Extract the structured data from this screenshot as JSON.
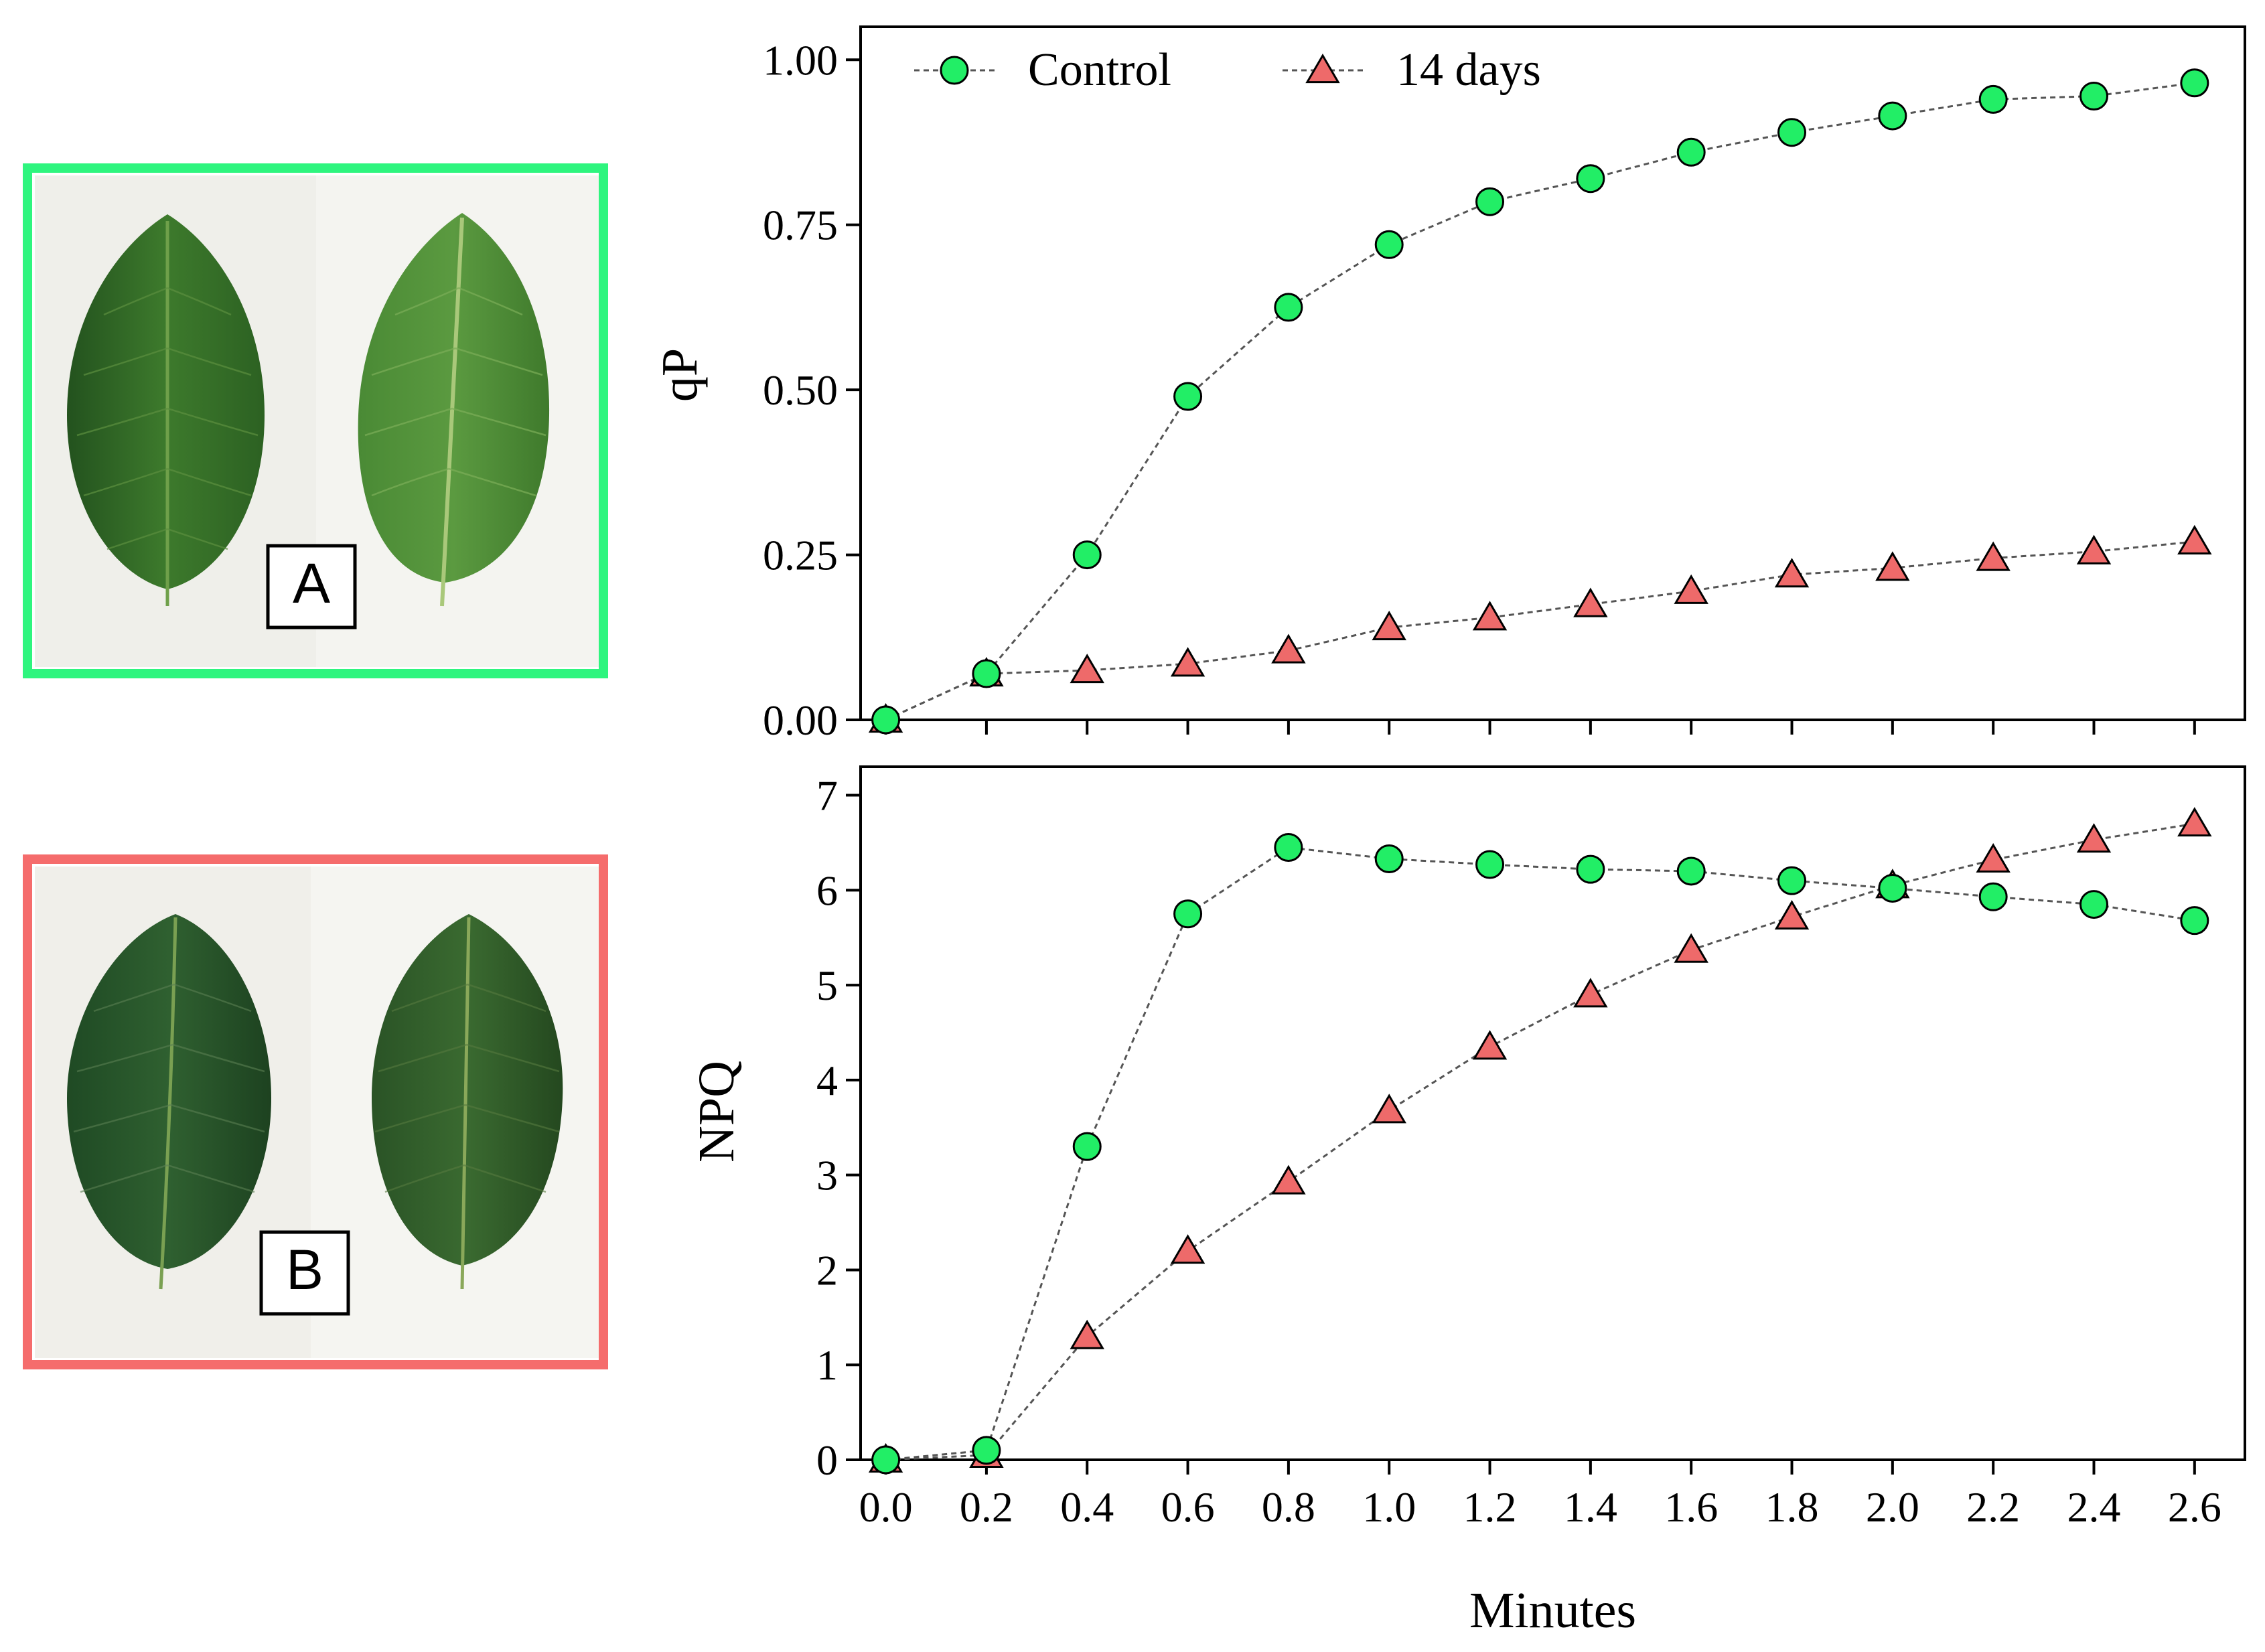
{
  "panels": {
    "a": {
      "label": "A",
      "frame_color": "#2ef57e"
    },
    "b": {
      "label": "B",
      "frame_color": "#f56c6c"
    }
  },
  "colors": {
    "control_fill": "#22ee66",
    "treat_fill": "#ee6a6a",
    "leaf_healthy": "#3f7a2c",
    "leaf_stressed": "#2e5a2a",
    "photo_bg": "#f1f1ec"
  },
  "chart_data": [
    {
      "type": "line",
      "title": "",
      "xlabel": "",
      "ylabel": "qP",
      "x": [
        0.0,
        0.2,
        0.4,
        0.6,
        0.8,
        1.0,
        1.2,
        1.4,
        1.6,
        1.8,
        2.0,
        2.2,
        2.4,
        2.6
      ],
      "ylim": [
        0,
        1.05
      ],
      "xlim": [
        -0.05,
        2.7
      ],
      "yticks": [
        "0.00",
        "0.25",
        "0.50",
        "0.75",
        "1.00"
      ],
      "ytick_values": [
        0,
        0.25,
        0.5,
        0.75,
        1.0
      ],
      "legend": "top-left",
      "series": [
        {
          "name": "Control",
          "marker": "circle",
          "values": [
            0.0,
            0.07,
            0.25,
            0.49,
            0.625,
            0.72,
            0.785,
            0.82,
            0.86,
            0.89,
            0.915,
            0.94,
            0.945,
            0.965
          ]
        },
        {
          "name": "14 days",
          "marker": "triangle",
          "values": [
            0.0,
            0.07,
            0.075,
            0.085,
            0.105,
            0.14,
            0.155,
            0.175,
            0.195,
            0.22,
            0.23,
            0.245,
            0.255,
            0.27
          ]
        }
      ]
    },
    {
      "type": "line",
      "title": "",
      "xlabel": "Minutes",
      "ylabel": "NPQ",
      "x": [
        0.0,
        0.2,
        0.4,
        0.6,
        0.8,
        1.0,
        1.2,
        1.4,
        1.6,
        1.8,
        2.0,
        2.2,
        2.4,
        2.6
      ],
      "xticks": [
        "0.0",
        "0.2",
        "0.4",
        "0.6",
        "0.8",
        "1.0",
        "1.2",
        "1.4",
        "1.6",
        "1.8",
        "2.0",
        "2.2",
        "2.4",
        "2.6"
      ],
      "ylim": [
        0,
        7.3
      ],
      "xlim": [
        -0.05,
        2.7
      ],
      "yticks": [
        "0",
        "1",
        "2",
        "3",
        "4",
        "5",
        "6",
        "7"
      ],
      "ytick_values": [
        0,
        1,
        2,
        3,
        4,
        5,
        6,
        7
      ],
      "series": [
        {
          "name": "Control",
          "marker": "circle",
          "values": [
            0.0,
            0.1,
            3.3,
            5.75,
            6.45,
            6.33,
            6.27,
            6.22,
            6.2,
            6.1,
            6.02,
            5.93,
            5.85,
            5.68
          ]
        },
        {
          "name": "14 days",
          "marker": "triangle",
          "values": [
            0.0,
            0.05,
            1.3,
            2.2,
            2.93,
            3.68,
            4.35,
            4.9,
            5.37,
            5.72,
            6.05,
            6.32,
            6.53,
            6.7
          ]
        }
      ]
    }
  ]
}
